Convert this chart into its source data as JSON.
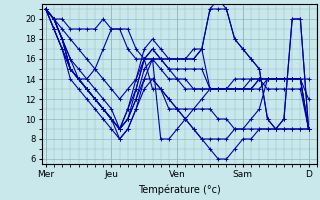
{
  "background_color": "#c8e8ec",
  "plot_background": "#c8e8ec",
  "grid_color": "#90b8c0",
  "line_color": "#0000aa",
  "marker": "+",
  "markersize": 3,
  "linewidth": 0.8,
  "xlabel": "Température (°c)",
  "xlabel_fontsize": 7,
  "ylim": [
    5.5,
    21.5
  ],
  "yticks": [
    6,
    8,
    10,
    12,
    14,
    16,
    18,
    20
  ],
  "ytick_fontsize": 6,
  "xtick_fontsize": 6.5,
  "x_day_labels": [
    "Mer",
    "Jeu",
    "Ven",
    "Sam",
    "D"
  ],
  "x_day_positions": [
    0,
    8,
    16,
    24,
    32
  ],
  "xlim": [
    -0.5,
    33
  ],
  "n_points": 33,
  "series": [
    [
      21,
      20,
      20,
      19,
      19,
      19,
      19,
      20,
      19,
      19,
      19,
      17,
      16,
      16,
      16,
      16,
      16,
      16,
      17,
      17,
      13,
      13,
      13,
      13,
      13,
      13,
      13,
      14,
      14,
      14,
      14,
      14,
      14
    ],
    [
      21,
      20,
      19,
      18,
      17,
      16,
      15,
      14,
      13,
      12,
      13,
      14,
      16,
      17,
      16,
      15,
      15,
      15,
      15,
      15,
      13,
      13,
      13,
      13,
      13,
      14,
      14,
      14,
      14,
      14,
      14,
      14,
      12
    ],
    [
      21,
      20,
      18,
      16,
      14,
      13,
      12,
      11,
      10,
      9,
      10,
      12,
      15,
      16,
      15,
      14,
      14,
      14,
      13,
      13,
      13,
      13,
      13,
      14,
      14,
      14,
      14,
      13,
      13,
      13,
      13,
      13,
      9
    ],
    [
      21,
      19,
      17,
      15,
      14,
      13,
      12,
      11,
      10,
      8,
      9,
      11,
      14,
      16,
      16,
      15,
      14,
      13,
      13,
      13,
      13,
      13,
      13,
      13,
      13,
      13,
      14,
      14,
      14,
      14,
      14,
      14,
      9
    ],
    [
      21,
      20,
      18,
      16,
      15,
      14,
      13,
      12,
      11,
      9,
      10,
      13,
      16,
      17,
      16,
      16,
      16,
      16,
      16,
      17,
      21,
      22,
      21,
      18,
      17,
      16,
      15,
      10,
      9,
      10,
      20,
      20,
      9
    ],
    [
      21,
      20,
      18,
      15,
      14,
      13,
      12,
      11,
      10,
      9,
      11,
      14,
      17,
      18,
      17,
      16,
      16,
      16,
      16,
      17,
      21,
      21,
      21,
      18,
      17,
      16,
      15,
      10,
      9,
      10,
      20,
      20,
      9
    ],
    [
      21,
      20,
      18,
      15,
      14,
      13,
      12,
      11,
      10,
      9,
      11,
      13,
      16,
      16,
      8,
      8,
      9,
      10,
      11,
      12,
      13,
      13,
      13,
      13,
      13,
      13,
      14,
      14,
      14,
      14,
      14,
      14,
      9
    ],
    [
      21,
      19,
      17,
      15,
      14,
      14,
      15,
      17,
      19,
      19,
      17,
      16,
      16,
      13,
      13,
      11,
      11,
      11,
      11,
      11,
      11,
      10,
      10,
      9,
      9,
      9,
      9,
      9,
      9,
      9,
      9,
      9,
      9
    ],
    [
      21,
      19,
      17,
      14,
      13,
      12,
      11,
      10,
      9,
      8,
      9,
      11,
      13,
      14,
      13,
      12,
      11,
      10,
      9,
      8,
      8,
      8,
      8,
      9,
      9,
      10,
      11,
      14,
      14,
      14,
      14,
      14,
      9
    ],
    [
      21,
      20,
      18,
      15,
      14,
      13,
      12,
      11,
      10,
      9,
      10,
      12,
      14,
      14,
      13,
      12,
      11,
      10,
      9,
      8,
      7,
      6,
      6,
      7,
      8,
      8,
      9,
      9,
      9,
      9,
      9,
      9,
      9
    ]
  ]
}
